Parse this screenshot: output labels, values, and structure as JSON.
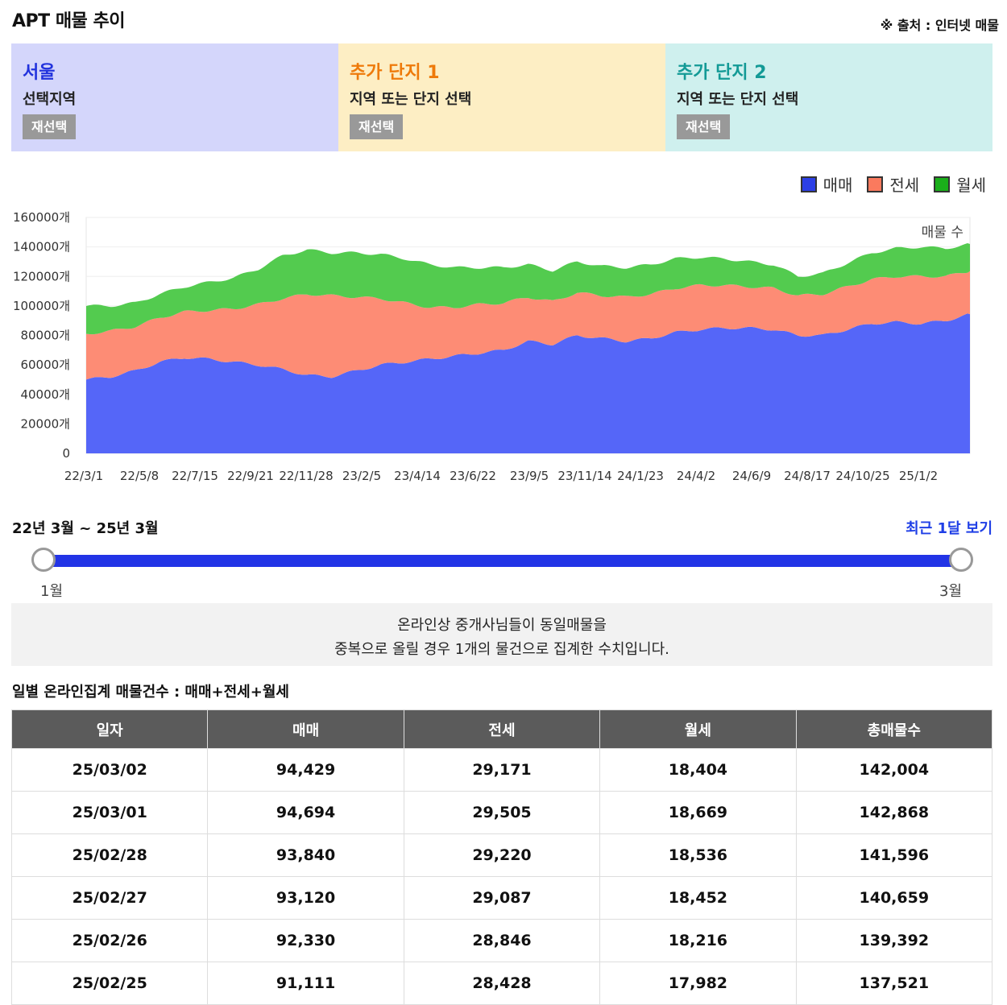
{
  "header": {
    "title": "APT 매물 추이",
    "source": "※ 출처 : 인터넷 매물"
  },
  "panels": [
    {
      "name": "서울",
      "sub": "선택지역",
      "button": "재선택",
      "bg": "#d4d6fb",
      "color": "#2233dd"
    },
    {
      "name": "추가 단지 1",
      "sub": "지역 또는 단지 선택",
      "button": "재선택",
      "bg": "#fdeec4",
      "color": "#ee7a0a"
    },
    {
      "name": "추가 단지 2",
      "sub": "지역 또는 단지 선택",
      "button": "재선택",
      "bg": "#cff0ee",
      "color": "#139a96"
    }
  ],
  "legend": [
    {
      "label": "매매",
      "color": "#2c3fe6"
    },
    {
      "label": "전세",
      "color": "#fa7a5e"
    },
    {
      "label": "월세",
      "color": "#1aaf1a"
    }
  ],
  "chart_data": {
    "type": "area",
    "stacked": true,
    "annotation": "매물 수",
    "ylim": [
      0,
      160000
    ],
    "y_ticks": [
      "0",
      "20000개",
      "40000개",
      "60000개",
      "80000개",
      "100000개",
      "120000개",
      "140000개",
      "160000개"
    ],
    "x_ticks": [
      "22/3/1",
      "22/5/8",
      "22/7/15",
      "22/9/21",
      "22/11/28",
      "23/2/5",
      "23/4/14",
      "23/6/22",
      "23/9/5",
      "23/11/14",
      "24/1/23",
      "24/4/2",
      "24/6/9",
      "24/8/17",
      "24/10/25",
      "25/1/2"
    ],
    "x": [
      "22/3",
      "22/4",
      "22/5",
      "22/6",
      "22/7",
      "22/8",
      "22/9",
      "22/10",
      "22/11",
      "22/12",
      "23/1",
      "23/2",
      "23/3",
      "23/4",
      "23/5",
      "23/6",
      "23/7",
      "23/8",
      "23/9",
      "23/10",
      "23/11",
      "23/12",
      "24/1",
      "24/2",
      "24/3",
      "24/4",
      "24/5",
      "24/6",
      "24/7",
      "24/8",
      "24/9",
      "24/10",
      "24/11",
      "24/12",
      "25/1",
      "25/2",
      "25/3"
    ],
    "series": [
      {
        "name": "매매",
        "color": "#5566f8",
        "values": [
          50000,
          52000,
          56000,
          62000,
          65000,
          64000,
          62000,
          60000,
          57000,
          53000,
          52000,
          56000,
          60000,
          62000,
          64000,
          66000,
          68000,
          70000,
          76000,
          74000,
          80000,
          78000,
          76000,
          78000,
          82000,
          84000,
          85000,
          85000,
          84000,
          80000,
          80000,
          84000,
          88000,
          89000,
          88000,
          90000,
          94429
        ]
      },
      {
        "name": "전세",
        "color": "#fd8c75",
        "values": [
          31000,
          31000,
          30000,
          30000,
          31000,
          33000,
          36000,
          41000,
          48000,
          55000,
          55000,
          50000,
          45000,
          40000,
          35000,
          33000,
          33000,
          32000,
          30000,
          29000,
          29000,
          29000,
          30000,
          30000,
          30000,
          30000,
          29000,
          28000,
          28000,
          27000,
          28000,
          29000,
          30000,
          31000,
          32000,
          30000,
          29171
        ]
      },
      {
        "name": "월세",
        "color": "#53cb4f",
        "values": [
          19000,
          17000,
          16000,
          16000,
          17000,
          19000,
          21000,
          24000,
          29000,
          30000,
          29000,
          30000,
          30000,
          30000,
          29000,
          27000,
          25000,
          24000,
          22000,
          21000,
          21000,
          20000,
          20000,
          20000,
          20000,
          19000,
          18000,
          17000,
          16000,
          13000,
          14000,
          16000,
          18000,
          19000,
          20000,
          19000,
          18404
        ]
      }
    ]
  },
  "period": {
    "text": "22년 3월 ~ 25년 3월",
    "recent": "최근 1달 보기",
    "left_label": "1월",
    "right_label": "3월"
  },
  "notice": {
    "line1": "온라인상 중개사님들이 동일매물을",
    "line2": "중복으로 올릴 경우 1개의 물건으로 집계한 수치입니다."
  },
  "table": {
    "caption": "일별 온라인집계 매물건수 : 매매+전세+월세",
    "headers": [
      "일자",
      "매매",
      "전세",
      "월세",
      "총매물수"
    ],
    "rows": [
      [
        "25/03/02",
        "94,429",
        "29,171",
        "18,404",
        "142,004"
      ],
      [
        "25/03/01",
        "94,694",
        "29,505",
        "18,669",
        "142,868"
      ],
      [
        "25/02/28",
        "93,840",
        "29,220",
        "18,536",
        "141,596"
      ],
      [
        "25/02/27",
        "93,120",
        "29,087",
        "18,452",
        "140,659"
      ],
      [
        "25/02/26",
        "92,330",
        "28,846",
        "18,216",
        "139,392"
      ],
      [
        "25/02/25",
        "91,111",
        "28,428",
        "17,982",
        "137,521"
      ]
    ]
  }
}
